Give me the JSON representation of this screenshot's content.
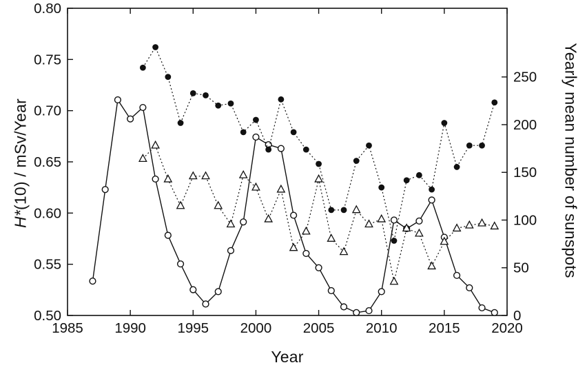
{
  "chart_data": {
    "type": "line",
    "title": "",
    "xlabel": "Year",
    "ylabel_left_italic": "H*",
    "ylabel_left_rest": "(10) / mSv/Year",
    "ylabel_right": "Yearly mean number of sunspots",
    "xlim": [
      1985,
      2020
    ],
    "ylim_left": [
      0.5,
      0.8
    ],
    "ylim_right": [
      0,
      322
    ],
    "x_ticks": [
      "1985",
      "1990",
      "1995",
      "2000",
      "2005",
      "2010",
      "2015",
      "2020"
    ],
    "y_ticks_left": [
      "0.50",
      "0.55",
      "0.60",
      "0.65",
      "0.70",
      "0.75",
      "0.80"
    ],
    "y_ticks_right": [
      "0",
      "50",
      "100",
      "150",
      "200",
      "250"
    ],
    "grid": false,
    "legend": "none",
    "colors": {
      "axis": "#111111",
      "background": "#ffffff",
      "marker_fill": "#111111",
      "open_marker_fill": "#ffffff"
    },
    "series": [
      {
        "id": "sunspots-open-circles",
        "axis": "right",
        "marker": "open-circle",
        "line": "solid",
        "x": [
          1987,
          1988,
          1989,
          1990,
          1991,
          1992,
          1993,
          1994,
          1995,
          1996,
          1997,
          1998,
          1999,
          2000,
          2001,
          2002,
          2003,
          2004,
          2005,
          2006,
          2007,
          2008,
          2009,
          2010,
          2011,
          2012,
          2013,
          2014,
          2015,
          2016,
          2017,
          2018,
          2019
        ],
        "y": [
          36,
          132,
          226,
          206,
          218,
          143,
          84,
          54,
          27,
          12,
          25,
          68,
          98,
          187,
          179,
          175,
          105,
          65,
          50,
          26,
          9,
          3,
          5,
          25,
          100,
          91,
          99,
          121,
          82,
          42,
          29,
          8,
          3
        ]
      },
      {
        "id": "dose-filled-circles",
        "axis": "left",
        "marker": "filled-circle",
        "line": "dotted",
        "x": [
          1991,
          1992,
          1993,
          1994,
          1995,
          1996,
          1997,
          1998,
          1999,
          2000,
          2001,
          2002,
          2003,
          2004,
          2005,
          2006,
          2007,
          2008,
          2009,
          2010,
          2011,
          2012,
          2013,
          2014,
          2015,
          2016,
          2017,
          2018,
          2019
        ],
        "y": [
          0.742,
          0.762,
          0.733,
          0.688,
          0.717,
          0.715,
          0.705,
          0.707,
          0.679,
          0.691,
          0.662,
          0.711,
          0.679,
          0.662,
          0.648,
          0.603,
          0.603,
          0.651,
          0.666,
          0.625,
          0.573,
          0.632,
          0.637,
          0.623,
          0.688,
          0.645,
          0.666,
          0.666,
          0.708
        ]
      },
      {
        "id": "dose-open-triangles",
        "axis": "left",
        "marker": "open-triangle",
        "line": "dotted",
        "x": [
          1991,
          1992,
          1993,
          1994,
          1995,
          1996,
          1997,
          1998,
          1999,
          2000,
          2001,
          2002,
          2003,
          2004,
          2005,
          2006,
          2007,
          2008,
          2009,
          2010,
          2011,
          2012,
          2013,
          2014,
          2015,
          2016,
          2017,
          2018,
          2019
        ],
        "y": [
          0.653,
          0.666,
          0.633,
          0.607,
          0.636,
          0.636,
          0.607,
          0.589,
          0.637,
          0.625,
          0.594,
          0.623,
          0.566,
          0.582,
          0.633,
          0.575,
          0.562,
          0.603,
          0.589,
          0.594,
          0.533,
          0.585,
          0.58,
          0.548,
          0.572,
          0.585,
          0.588,
          0.59,
          0.587
        ]
      }
    ]
  }
}
